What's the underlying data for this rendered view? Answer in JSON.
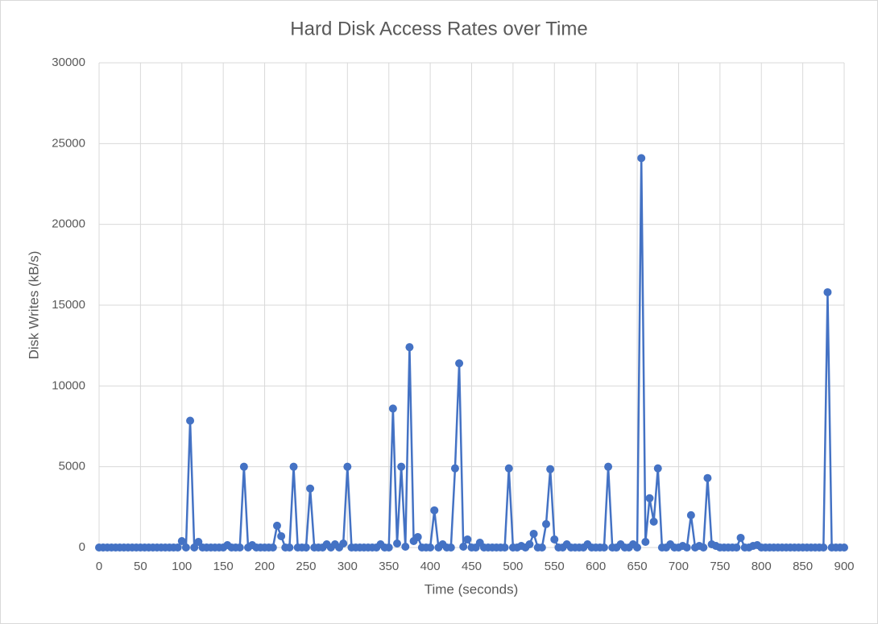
{
  "chart_data": {
    "type": "line",
    "title": "Hard Disk Access Rates over Time",
    "x_label": "Time (seconds)",
    "y_label": "Disk Writes (kB/s)",
    "x": [
      0,
      5,
      10,
      15,
      20,
      25,
      30,
      35,
      40,
      45,
      50,
      55,
      60,
      65,
      70,
      75,
      80,
      85,
      90,
      95,
      100,
      105,
      110,
      115,
      120,
      125,
      130,
      135,
      140,
      145,
      150,
      155,
      160,
      165,
      170,
      175,
      180,
      185,
      190,
      195,
      200,
      205,
      210,
      215,
      220,
      225,
      230,
      235,
      240,
      245,
      250,
      255,
      260,
      265,
      270,
      275,
      280,
      285,
      290,
      295,
      300,
      305,
      310,
      315,
      320,
      325,
      330,
      335,
      340,
      345,
      350,
      355,
      360,
      365,
      370,
      375,
      380,
      385,
      390,
      395,
      400,
      405,
      410,
      415,
      420,
      425,
      430,
      435,
      440,
      445,
      450,
      455,
      460,
      465,
      470,
      475,
      480,
      485,
      490,
      495,
      500,
      505,
      510,
      515,
      520,
      525,
      530,
      535,
      540,
      545,
      550,
      555,
      560,
      565,
      570,
      575,
      580,
      585,
      590,
      595,
      600,
      605,
      610,
      615,
      620,
      625,
      630,
      635,
      640,
      645,
      650,
      655,
      660,
      665,
      670,
      675,
      680,
      685,
      690,
      695,
      700,
      705,
      710,
      715,
      720,
      725,
      730,
      735,
      740,
      745,
      750,
      755,
      760,
      765,
      770,
      775,
      780,
      785,
      790,
      795,
      800,
      805,
      810,
      815,
      820,
      825,
      830,
      835,
      840,
      845,
      850,
      855,
      860,
      865,
      870,
      875,
      880,
      885,
      890,
      895,
      900
    ],
    "series": [
      {
        "name": "Disk Writes (kB/s)",
        "color": "#4472c4",
        "values": [
          0,
          0,
          0,
          0,
          0,
          0,
          0,
          0,
          0,
          0,
          0,
          0,
          0,
          0,
          0,
          0,
          0,
          0,
          0,
          0,
          400,
          0,
          7850,
          0,
          350,
          0,
          0,
          0,
          0,
          0,
          0,
          150,
          0,
          0,
          0,
          5000,
          0,
          150,
          0,
          0,
          0,
          0,
          0,
          1350,
          700,
          0,
          0,
          5000,
          0,
          0,
          0,
          3650,
          0,
          0,
          0,
          200,
          0,
          200,
          0,
          250,
          5000,
          0,
          0,
          0,
          0,
          0,
          0,
          0,
          200,
          0,
          0,
          8600,
          250,
          5000,
          50,
          12400,
          400,
          650,
          0,
          0,
          0,
          2300,
          0,
          200,
          0,
          0,
          4900,
          11400,
          50,
          500,
          0,
          0,
          300,
          0,
          0,
          0,
          0,
          0,
          0,
          4900,
          0,
          0,
          100,
          0,
          200,
          850,
          0,
          0,
          1450,
          4850,
          500,
          0,
          0,
          200,
          0,
          0,
          0,
          0,
          200,
          0,
          0,
          0,
          0,
          5000,
          0,
          0,
          200,
          0,
          0,
          200,
          0,
          24100,
          350,
          3050,
          1600,
          4900,
          0,
          0,
          200,
          0,
          0,
          100,
          0,
          2000,
          0,
          100,
          0,
          4300,
          200,
          100,
          0,
          0,
          0,
          0,
          0,
          600,
          0,
          0,
          100,
          150,
          0,
          0,
          0,
          0,
          0,
          0,
          0,
          0,
          0,
          0,
          0,
          0,
          0,
          0,
          0,
          0,
          15800,
          0,
          0,
          0,
          0
        ]
      }
    ],
    "xlim": [
      0,
      900
    ],
    "xticks": [
      0,
      50,
      100,
      150,
      200,
      250,
      300,
      350,
      400,
      450,
      500,
      550,
      600,
      650,
      700,
      750,
      800,
      850,
      900
    ],
    "ylim": [
      0,
      30000
    ],
    "yticks": [
      0,
      5000,
      10000,
      15000,
      20000,
      25000,
      30000
    ],
    "grid": true
  }
}
